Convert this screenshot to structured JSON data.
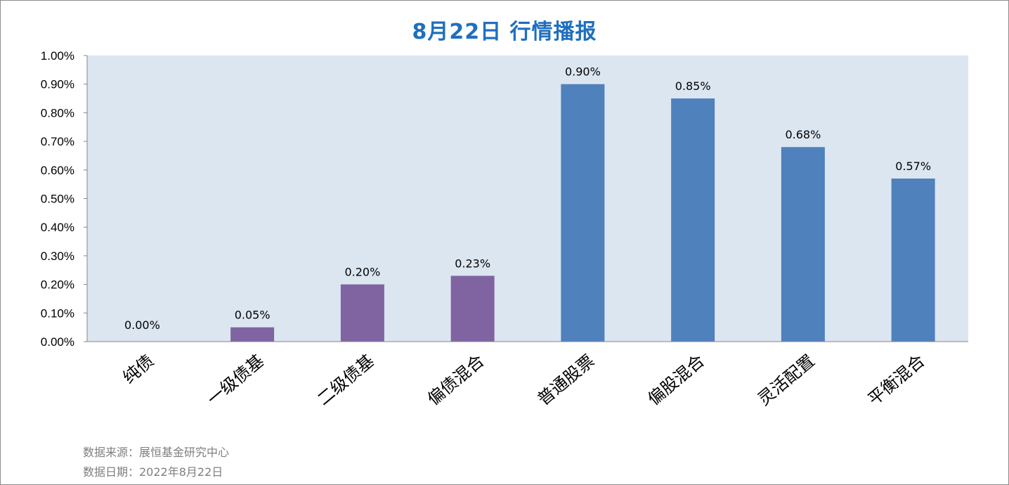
{
  "title": "8月22日  行情播报",
  "footer": {
    "source": "数据来源：展恒基金研究中心",
    "date": "数据日期：2022年8月22日"
  },
  "colors": {
    "plot_bg": "#dce6f1",
    "bond": "#8064a2",
    "equity": "#4f81bd",
    "title": "#1f6fbf"
  },
  "chart_data": {
    "type": "bar",
    "categories": [
      "纯债",
      "一级债基",
      "二级债基",
      "偏债混合",
      "普通股票",
      "偏股混合",
      "灵活配置",
      "平衡混合"
    ],
    "values": [
      0.0,
      0.05,
      0.2,
      0.23,
      0.9,
      0.85,
      0.68,
      0.57
    ],
    "data_labels": [
      "0.00%",
      "0.05%",
      "0.20%",
      "0.23%",
      "0.90%",
      "0.85%",
      "0.68%",
      "0.57%"
    ],
    "bar_colors": [
      "#8064a2",
      "#8064a2",
      "#8064a2",
      "#8064a2",
      "#4f81bd",
      "#4f81bd",
      "#4f81bd",
      "#4f81bd"
    ],
    "ylim": [
      0,
      1.0
    ],
    "yticks": [
      "0.00%",
      "0.10%",
      "0.20%",
      "0.30%",
      "0.40%",
      "0.50%",
      "0.60%",
      "0.70%",
      "0.80%",
      "0.90%",
      "1.00%"
    ],
    "title": "8月22日  行情播报",
    "xlabel": "",
    "ylabel": "",
    "grid": false,
    "legend": "none"
  }
}
